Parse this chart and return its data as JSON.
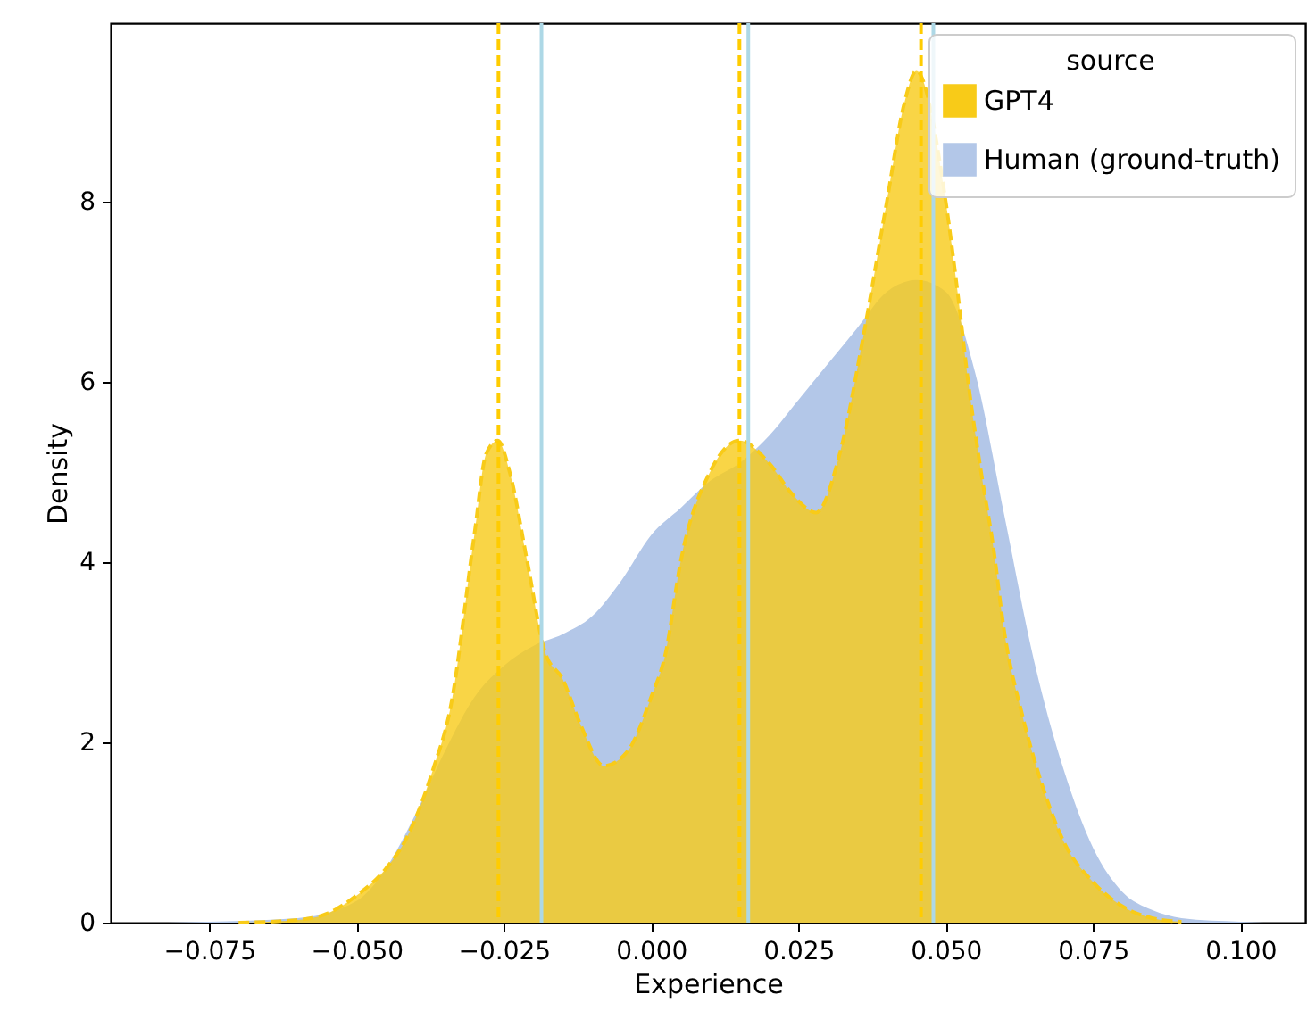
{
  "chart_data": {
    "type": "area",
    "xlabel": "Experience",
    "ylabel": "Density",
    "legend_title": "source",
    "legend": "top right",
    "grid": false,
    "xlim": [
      -0.0917,
      0.111
    ],
    "ylim": [
      0,
      9.98
    ],
    "xticks": [
      {
        "value": -0.075,
        "label": "−0.075"
      },
      {
        "value": -0.05,
        "label": "−0.050"
      },
      {
        "value": -0.025,
        "label": "−0.025"
      },
      {
        "value": 0,
        "label": "0.000"
      },
      {
        "value": 0.025,
        "label": "0.025"
      },
      {
        "value": 0.05,
        "label": "0.050"
      },
      {
        "value": 0.075,
        "label": "0.075"
      },
      {
        "value": 0.1,
        "label": "0.100"
      }
    ],
    "yticks": [
      0,
      2,
      4,
      6,
      8
    ],
    "series": [
      {
        "name": "GPT4",
        "color": "#f8cb18",
        "line_style": "dashed",
        "x": [
          -0.07,
          -0.06,
          -0.055,
          -0.05,
          -0.045,
          -0.0418,
          -0.037,
          -0.034,
          -0.03,
          -0.028,
          -0.026,
          -0.024,
          -0.021,
          -0.018,
          -0.015,
          -0.012,
          -0.008,
          -0.004,
          0,
          0.0025,
          0.005,
          0.01,
          0.015,
          0.02,
          0.024,
          0.028,
          0.032,
          0.036,
          0.04,
          0.043,
          0.045,
          0.05,
          0.052,
          0.054,
          0.056,
          0.058,
          0.06,
          0.063,
          0.066,
          0.07,
          0.075,
          0.08,
          0.085,
          0.09
        ],
        "values": [
          0,
          0.03,
          0.1,
          0.3,
          0.6,
          0.9,
          1.7,
          2.4,
          4.3,
          5.2,
          5.35,
          5.0,
          4.0,
          3.0,
          2.7,
          2.2,
          1.74,
          1.9,
          2.5,
          3.0,
          4.0,
          5.0,
          5.35,
          5.1,
          4.75,
          4.55,
          5.2,
          6.5,
          8.0,
          9.1,
          9.45,
          8.0,
          7.0,
          5.9,
          5.0,
          4.2,
          3.2,
          2.3,
          1.6,
          0.9,
          0.45,
          0.18,
          0.05,
          0.01
        ]
      },
      {
        "name": "Human (ground-truth)",
        "color": "#b3c7e8",
        "x": [
          -0.082,
          -0.06,
          -0.05,
          -0.045,
          -0.04,
          -0.035,
          -0.03,
          -0.025,
          -0.02,
          -0.015,
          -0.01,
          -0.005,
          0,
          0.005,
          0.01,
          0.015,
          0.02,
          0.025,
          0.03,
          0.035,
          0.04,
          0.045,
          0.05,
          0.055,
          0.06,
          0.065,
          0.07,
          0.075,
          0.08,
          0.085,
          0.09,
          0.1,
          0.104
        ],
        "values": [
          0,
          0.05,
          0.24,
          0.6,
          1.2,
          1.9,
          2.5,
          2.85,
          3.07,
          3.2,
          3.4,
          3.8,
          4.3,
          4.6,
          4.9,
          5.1,
          5.4,
          5.8,
          6.2,
          6.6,
          7.0,
          7.13,
          7.0,
          6.1,
          4.5,
          2.9,
          1.7,
          0.83,
          0.34,
          0.14,
          0.05,
          0.01,
          0
        ]
      }
    ],
    "ref_lines": [
      {
        "axis": "x",
        "value": -0.0259,
        "color": "#ffcc00",
        "line_style": "dashed"
      },
      {
        "axis": "x",
        "value": 0.015,
        "color": "#ffcc00",
        "line_style": "dashed"
      },
      {
        "axis": "x",
        "value": 0.0458,
        "color": "#ffcc00",
        "line_style": "dashed"
      },
      {
        "axis": "x",
        "value": -0.0186,
        "color": "#add8e6",
        "line_style": "solid"
      },
      {
        "axis": "x",
        "value": 0.0165,
        "color": "#add8e6",
        "line_style": "solid"
      },
      {
        "axis": "x",
        "value": 0.0479,
        "color": "#add8e6",
        "line_style": "solid"
      }
    ]
  }
}
